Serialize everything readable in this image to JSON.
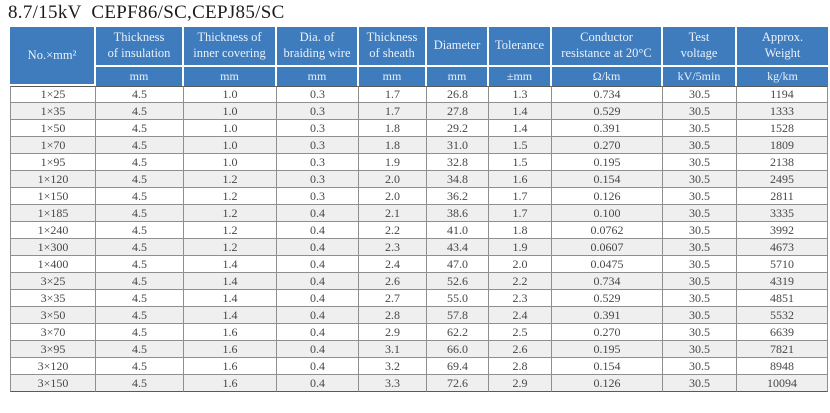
{
  "title": "8.7/15kV  CEPF86/SC,CEPJ85/SC",
  "colors": {
    "header_bg": "#3e7cbe",
    "header_text": "#eaf1f8",
    "stripe_bg": "#efefef",
    "border": "#8f8f8f",
    "body_text": "#474747"
  },
  "table": {
    "columns": [
      {
        "name": "No.×mm²",
        "unit": ""
      },
      {
        "name": "Thickness\nof insulation",
        "unit": "mm"
      },
      {
        "name": "Thickness of\ninner covering",
        "unit": "mm"
      },
      {
        "name": "Dia. of\nbraiding wire",
        "unit": "mm"
      },
      {
        "name": "Thickness\nof sheath",
        "unit": "mm"
      },
      {
        "name": "Diameter",
        "unit": "mm"
      },
      {
        "name": "Tolerance",
        "unit": "±mm"
      },
      {
        "name": "Conductor\nresistance at 20°C",
        "unit": "Ω/km"
      },
      {
        "name": "Test\nvoltage",
        "unit": "kV/5min"
      },
      {
        "name": "Approx.\nWeight",
        "unit": "kg/km"
      }
    ],
    "rows": [
      [
        "1×25",
        "4.5",
        "1.0",
        "0.3",
        "1.7",
        "26.8",
        "1.3",
        "0.734",
        "30.5",
        "1194"
      ],
      [
        "1×35",
        "4.5",
        "1.0",
        "0.3",
        "1.7",
        "27.8",
        "1.4",
        "0.529",
        "30.5",
        "1333"
      ],
      [
        "1×50",
        "4.5",
        "1.0",
        "0.3",
        "1.8",
        "29.2",
        "1.4",
        "0.391",
        "30.5",
        "1528"
      ],
      [
        "1×70",
        "4.5",
        "1.0",
        "0.3",
        "1.8",
        "31.0",
        "1.5",
        "0.270",
        "30.5",
        "1809"
      ],
      [
        "1×95",
        "4.5",
        "1.0",
        "0.3",
        "1.9",
        "32.8",
        "1.5",
        "0.195",
        "30.5",
        "2138"
      ],
      [
        "1×120",
        "4.5",
        "1.2",
        "0.3",
        "2.0",
        "34.8",
        "1.6",
        "0.154",
        "30.5",
        "2495"
      ],
      [
        "1×150",
        "4.5",
        "1.2",
        "0.3",
        "2.0",
        "36.2",
        "1.7",
        "0.126",
        "30.5",
        "2811"
      ],
      [
        "1×185",
        "4.5",
        "1.2",
        "0.4",
        "2.1",
        "38.6",
        "1.7",
        "0.100",
        "30.5",
        "3335"
      ],
      [
        "1×240",
        "4.5",
        "1.2",
        "0.4",
        "2.2",
        "41.0",
        "1.8",
        "0.0762",
        "30.5",
        "3992"
      ],
      [
        "1×300",
        "4.5",
        "1.2",
        "0.4",
        "2.3",
        "43.4",
        "1.9",
        "0.0607",
        "30.5",
        "4673"
      ],
      [
        "1×400",
        "4.5",
        "1.4",
        "0.4",
        "2.4",
        "47.0",
        "2.0",
        "0.0475",
        "30.5",
        "5710"
      ],
      [
        "3×25",
        "4.5",
        "1.4",
        "0.4",
        "2.6",
        "52.6",
        "2.2",
        "0.734",
        "30.5",
        "4319"
      ],
      [
        "3×35",
        "4.5",
        "1.4",
        "0.4",
        "2.7",
        "55.0",
        "2.3",
        "0.529",
        "30.5",
        "4851"
      ],
      [
        "3×50",
        "4.5",
        "1.4",
        "0.4",
        "2.8",
        "57.8",
        "2.4",
        "0.391",
        "30.5",
        "5532"
      ],
      [
        "3×70",
        "4.5",
        "1.6",
        "0.4",
        "2.9",
        "62.2",
        "2.5",
        "0.270",
        "30.5",
        "6639"
      ],
      [
        "3×95",
        "4.5",
        "1.6",
        "0.4",
        "3.1",
        "66.0",
        "2.6",
        "0.195",
        "30.5",
        "7821"
      ],
      [
        "3×120",
        "4.5",
        "1.6",
        "0.4",
        "3.2",
        "69.4",
        "2.8",
        "0.154",
        "30.5",
        "8948"
      ],
      [
        "3×150",
        "4.5",
        "1.6",
        "0.4",
        "3.3",
        "72.6",
        "2.9",
        "0.126",
        "30.5",
        "10094"
      ]
    ]
  }
}
